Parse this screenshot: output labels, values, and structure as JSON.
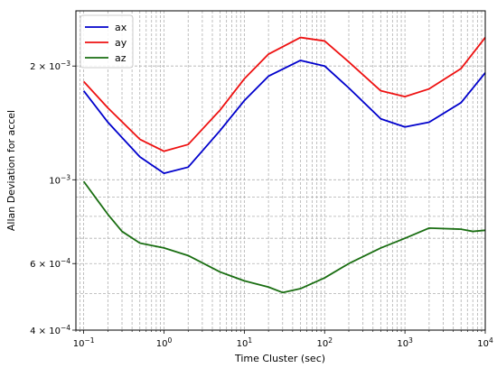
{
  "chart_data": {
    "type": "line",
    "xscale": "log",
    "yscale": "log",
    "xlabel": "Time Cluster (sec)",
    "ylabel": "Allan Deviation for accel",
    "xlim": [
      0.08,
      10000
    ],
    "ylim": [
      0.0004,
      0.0028
    ],
    "grid": true,
    "grid_style": "dashed",
    "legend": "top-left",
    "x_ticks": [
      {
        "value": 0.1,
        "base": "10",
        "exp": "−1"
      },
      {
        "value": 1,
        "base": "10",
        "exp": "0"
      },
      {
        "value": 10,
        "base": "10",
        "exp": "1"
      },
      {
        "value": 100,
        "base": "10",
        "exp": "2"
      },
      {
        "value": 1000,
        "base": "10",
        "exp": "3"
      },
      {
        "value": 10000,
        "base": "10",
        "exp": "4"
      }
    ],
    "y_ticks": [
      {
        "value": 0.0004,
        "mant": "4 × ",
        "base": "10",
        "exp": "−4"
      },
      {
        "value": 0.0006,
        "mant": "6 × ",
        "base": "10",
        "exp": "−4"
      },
      {
        "value": 0.001,
        "mant": "",
        "base": "10",
        "exp": "−3"
      },
      {
        "value": 0.002,
        "mant": "2 × ",
        "base": "10",
        "exp": "−3"
      }
    ],
    "series": [
      {
        "name": "ax",
        "color": "#0000cc",
        "x": [
          0.1,
          0.2,
          0.5,
          1,
          2,
          5,
          10,
          20,
          50,
          100,
          200,
          500,
          1000,
          2000,
          5000,
          10000
        ],
        "y": [
          0.00172,
          0.00142,
          0.00115,
          0.00104,
          0.00108,
          0.00135,
          0.00162,
          0.00188,
          0.00207,
          0.002,
          0.00175,
          0.00145,
          0.00138,
          0.00142,
          0.0016,
          0.00192
        ]
      },
      {
        "name": "ay",
        "color": "#ee1111",
        "x": [
          0.1,
          0.2,
          0.5,
          1,
          2,
          5,
          10,
          20,
          50,
          100,
          200,
          500,
          1000,
          2000,
          5000,
          10000
        ],
        "y": [
          0.00182,
          0.00155,
          0.00128,
          0.00119,
          0.00124,
          0.00153,
          0.00185,
          0.00215,
          0.00238,
          0.00233,
          0.00205,
          0.00172,
          0.00166,
          0.00174,
          0.00197,
          0.00238
        ]
      },
      {
        "name": "az",
        "color": "#1a6e12",
        "x": [
          0.1,
          0.15,
          0.2,
          0.3,
          0.5,
          1,
          2,
          5,
          10,
          20,
          30,
          50,
          100,
          200,
          500,
          1000,
          2000,
          5000,
          7000,
          10000
        ],
        "y": [
          0.00099,
          0.00088,
          0.00081,
          0.00073,
          0.00068,
          0.00066,
          0.00063,
          0.00057,
          0.00054,
          0.00052,
          0.000503,
          0.000515,
          0.00055,
          0.0006,
          0.00066,
          0.0007,
          0.000745,
          0.00074,
          0.00073,
          0.000735
        ]
      }
    ]
  }
}
